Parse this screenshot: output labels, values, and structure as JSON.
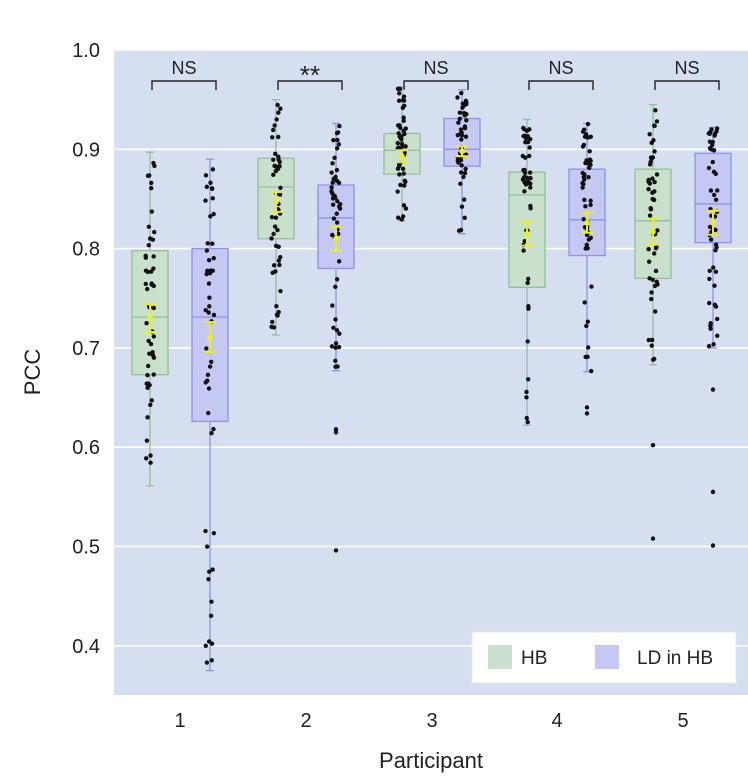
{
  "chart_data": {
    "type": "box",
    "title": "",
    "xlabel": "Participant",
    "ylabel": "PCC",
    "ylim": [
      0.35,
      1.0
    ],
    "yticks": [
      "0.4",
      "0.5",
      "0.6",
      "0.7",
      "0.8",
      "0.9",
      "1.0"
    ],
    "categories": [
      "1",
      "2",
      "3",
      "4",
      "5"
    ],
    "grid": true,
    "legend_position": "bottom-right",
    "colors": {
      "background": "#d5dff0",
      "grid": "#ffffff",
      "HB_fill": "#c8e0cc",
      "HB_edge": "#93bf9b",
      "LD_fill": "#c4c8f2",
      "LD_edge": "#8e95e4",
      "mean_marker": "#ecec2a",
      "points": "#111111"
    },
    "series": [
      {
        "name": "HB",
        "boxes": [
          {
            "whisker_low": 0.561,
            "q1": 0.673,
            "median": 0.731,
            "q3": 0.798,
            "whisker_high": 0.897,
            "mean": 0.73,
            "mean_err": 0.014
          },
          {
            "whisker_low": 0.713,
            "q1": 0.81,
            "median": 0.862,
            "q3": 0.891,
            "whisker_high": 0.95,
            "mean": 0.847,
            "mean_err": 0.01
          },
          {
            "whisker_low": 0.828,
            "q1": 0.875,
            "median": 0.899,
            "q3": 0.916,
            "whisker_high": 0.963,
            "mean": 0.893,
            "mean_err": 0.006
          },
          {
            "whisker_low": 0.622,
            "q1": 0.761,
            "median": 0.854,
            "q3": 0.877,
            "whisker_high": 0.93,
            "mean": 0.815,
            "mean_err": 0.012
          },
          {
            "whisker_low": 0.683,
            "q1": 0.77,
            "median": 0.828,
            "q3": 0.88,
            "whisker_high": 0.945,
            "mean": 0.817,
            "mean_err": 0.013
          }
        ]
      },
      {
        "name": "LD in HB",
        "boxes": [
          {
            "whisker_low": 0.375,
            "q1": 0.626,
            "median": 0.731,
            "q3": 0.8,
            "whisker_high": 0.89,
            "mean": 0.711,
            "mean_err": 0.015
          },
          {
            "whisker_low": 0.677,
            "q1": 0.78,
            "median": 0.831,
            "q3": 0.864,
            "whisker_high": 0.926,
            "mean": 0.81,
            "mean_err": 0.012
          },
          {
            "whisker_low": 0.815,
            "q1": 0.883,
            "median": 0.9,
            "q3": 0.931,
            "whisker_high": 0.96,
            "mean": 0.898,
            "mean_err": 0.005
          },
          {
            "whisker_low": 0.676,
            "q1": 0.793,
            "median": 0.829,
            "q3": 0.88,
            "whisker_high": 0.926,
            "mean": 0.826,
            "mean_err": 0.01
          },
          {
            "whisker_low": 0.7,
            "q1": 0.806,
            "median": 0.845,
            "q3": 0.896,
            "whisker_high": 0.922,
            "mean": 0.826,
            "mean_err": 0.012
          }
        ]
      }
    ],
    "outliers": [
      {
        "series": "LD in HB",
        "category": "2",
        "values": [
          0.618,
          0.615,
          0.496
        ]
      },
      {
        "series": "LD in HB",
        "category": "4",
        "values": [
          0.64,
          0.634
        ]
      },
      {
        "series": "HB",
        "category": "5",
        "values": [
          0.602,
          0.508
        ]
      },
      {
        "series": "LD in HB",
        "category": "5",
        "values": [
          0.658,
          0.555,
          0.501
        ]
      }
    ],
    "significance": [
      {
        "category": "1",
        "label": "NS"
      },
      {
        "category": "2",
        "label": "**"
      },
      {
        "category": "3",
        "label": "NS"
      },
      {
        "category": "4",
        "label": "NS"
      },
      {
        "category": "5",
        "label": "NS"
      }
    ]
  }
}
